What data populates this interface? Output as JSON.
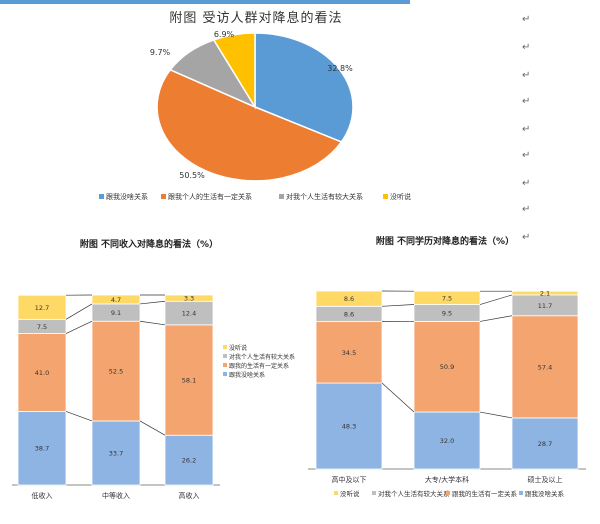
{
  "page": {
    "paragraph_mark": "↵"
  },
  "chart_data": [
    {
      "type": "pie",
      "title": "附图  受访人群对降息的看法",
      "slices": [
        {
          "label": "跟我没啥关系",
          "value": 32.8,
          "value_label": "32.8%",
          "color": "#5b9bd5"
        },
        {
          "label": "跟我个人的生活有一定关系",
          "value": 50.5,
          "value_label": "50.5%",
          "color": "#ed7d31"
        },
        {
          "label": "对我个人生活有较大关系",
          "value": 9.7,
          "value_label": "9.7%",
          "color": "#a5a5a5"
        },
        {
          "label": "没听说",
          "value": 6.9,
          "value_label": "6.9%",
          "color": "#ffc000"
        }
      ],
      "legend_position": "bottom"
    },
    {
      "type": "bar",
      "stacked": true,
      "title": "附图 不同收入对降息的看法（%）",
      "categories": [
        "低收入",
        "中等收入",
        "高收入"
      ],
      "series": [
        {
          "name": "跟我没啥关系",
          "values": [
            38.7,
            33.7,
            26.2
          ],
          "color": "#8eb4e3"
        },
        {
          "name": "跟我的生活有一定关系",
          "values": [
            41.0,
            52.5,
            58.1
          ],
          "color": "#f4a46f"
        },
        {
          "name": "对我个人生活有较大关系",
          "values": [
            7.5,
            9.1,
            12.4
          ],
          "color": "#bfbfbf"
        },
        {
          "name": "没听说",
          "values": [
            12.7,
            4.7,
            3.3
          ],
          "color": "#ffd966"
        }
      ],
      "value_labels": [
        [
          "38.7",
          "33.7",
          "26.2"
        ],
        [
          "41.0",
          "52.5",
          "58.1"
        ],
        [
          "7.5",
          "9.1",
          "12.4"
        ],
        [
          "12.7",
          "4.7",
          "3.3"
        ]
      ],
      "legend_position": "right",
      "legend_order": [
        "没听说",
        "对我个人生活有较大关系",
        "跟我的生活有一定关系",
        "跟我没啥关系"
      ]
    },
    {
      "type": "bar",
      "stacked": true,
      "title": "附图 不同学历对降息的看法（%）",
      "categories": [
        "高中及以下",
        "大专/大学本科",
        "硕士及以上"
      ],
      "series": [
        {
          "name": "跟我没啥关系",
          "values": [
            48.3,
            32.0,
            28.7
          ],
          "color": "#8eb4e3"
        },
        {
          "name": "跟我的生活有一定关系",
          "values": [
            34.5,
            50.9,
            57.4
          ],
          "color": "#f4a46f"
        },
        {
          "name": "对我个人生活有较大关系",
          "values": [
            8.6,
            9.5,
            11.7
          ],
          "color": "#bfbfbf"
        },
        {
          "name": "没听说",
          "values": [
            8.6,
            7.5,
            2.1
          ],
          "color": "#ffd966"
        }
      ],
      "value_labels": [
        [
          "48.3",
          "32.0",
          "28.7"
        ],
        [
          "34.5",
          "50.9",
          "57.4"
        ],
        [
          "8.6",
          "9.5",
          "11.7"
        ],
        [
          "8.6",
          "7.5",
          "2.1"
        ]
      ],
      "legend_position": "bottom",
      "legend_order": [
        "没听说",
        "对我个人生活有较大关系",
        "跟我的生活有一定关系",
        "跟我没啥关系"
      ]
    }
  ]
}
